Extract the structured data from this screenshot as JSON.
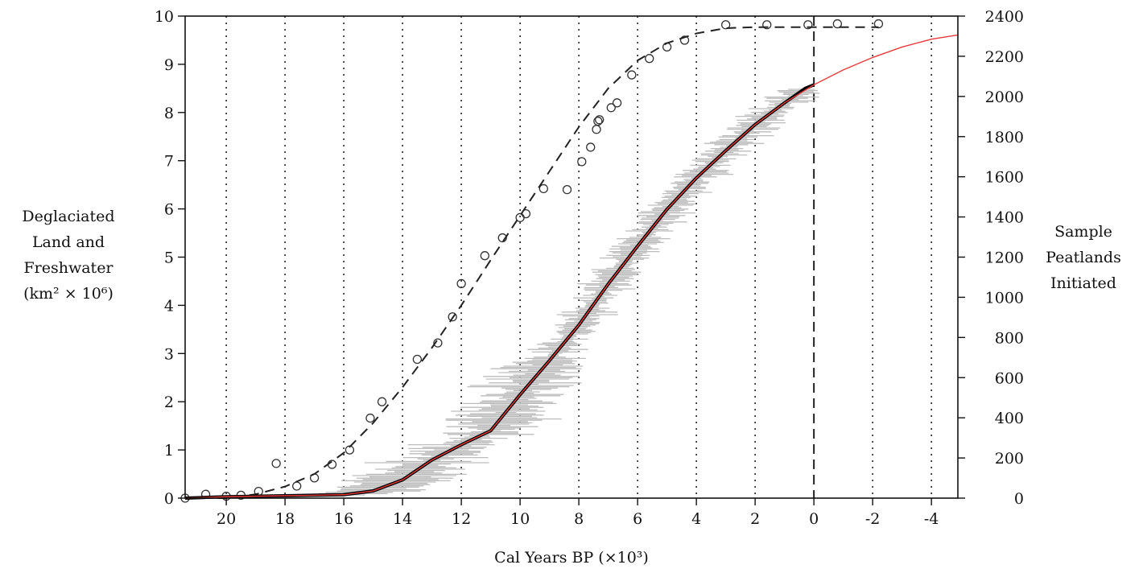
{
  "chart_data": {
    "type": "line",
    "xlabel": "Cal Years BP (×10³)",
    "ylabel_left_lines": [
      "Deglaciated",
      "Land and",
      "Freshwater",
      "(km² × 10⁶)"
    ],
    "ylabel_right_lines": [
      "Sample",
      "Peatlands",
      "Initiated"
    ],
    "x_axis_reversed": true,
    "xlim": [
      21.4,
      -4.9
    ],
    "ylim_left": [
      0,
      10
    ],
    "ylim_right": [
      0,
      2400
    ],
    "x_ticks": [
      20,
      18,
      16,
      14,
      12,
      10,
      8,
      6,
      4,
      2,
      0,
      -2,
      -4
    ],
    "x_tick_labels": [
      "20",
      "18",
      "16",
      "14",
      "12",
      "10",
      "8",
      "6",
      "4",
      "2",
      "0",
      "-2",
      "-4"
    ],
    "y_left_ticks": [
      0,
      1,
      2,
      3,
      4,
      5,
      6,
      7,
      8,
      9,
      10
    ],
    "y_right_ticks": [
      0,
      200,
      400,
      600,
      800,
      1000,
      1200,
      1400,
      1600,
      1800,
      2000,
      2200,
      2400
    ],
    "vertical_grid": "dotted lines at each x tick; dashed line at 0",
    "series": [
      {
        "style": "circles",
        "axis": "left",
        "x": [
          21.4,
          20.7,
          20.0,
          19.5,
          18.9,
          18.3,
          17.6,
          17.0,
          16.4,
          15.8,
          15.1,
          14.7,
          13.5,
          12.8,
          12.3,
          12.0,
          11.2,
          10.6,
          10.0,
          9.8,
          9.2,
          8.4,
          7.9,
          7.6,
          7.4,
          7.35,
          7.3,
          6.9,
          6.7,
          6.2,
          5.6,
          5.0,
          4.4,
          3.0,
          1.6,
          0.2,
          -0.8,
          -2.2
        ],
        "y": [
          0.0,
          0.08,
          0.04,
          0.06,
          0.14,
          0.72,
          0.25,
          0.42,
          0.7,
          1.0,
          1.66,
          2.0,
          2.88,
          3.22,
          3.76,
          4.45,
          5.03,
          5.4,
          5.82,
          5.9,
          6.42,
          6.4,
          6.98,
          7.28,
          7.65,
          7.82,
          7.85,
          8.1,
          8.2,
          8.78,
          9.12,
          9.36,
          9.5,
          9.82,
          9.82,
          9.82,
          9.84,
          9.84
        ]
      },
      {
        "style": "dashed",
        "axis": "left",
        "x": [
          21.4,
          20.0,
          19.0,
          18.0,
          17.0,
          16.0,
          15.0,
          14.0,
          13.0,
          12.0,
          11.0,
          10.0,
          9.0,
          8.0,
          7.0,
          6.0,
          5.0,
          4.0,
          3.0,
          2.0,
          1.0,
          0.0,
          -1.0,
          -2.2
        ],
        "y": [
          0.0,
          0.0,
          0.08,
          0.24,
          0.5,
          0.94,
          1.56,
          2.3,
          3.12,
          4.0,
          4.94,
          5.86,
          6.78,
          7.7,
          8.5,
          9.08,
          9.44,
          9.64,
          9.75,
          9.77,
          9.77,
          9.77,
          9.77,
          9.77
        ]
      },
      {
        "style": "solid-black",
        "axis": "right",
        "x": [
          21.4,
          20.0,
          18.0,
          16.0,
          15.0,
          14.0,
          13.0,
          12.0,
          11.0,
          10.0,
          9.0,
          8.0,
          7.0,
          6.0,
          5.0,
          4.0,
          3.0,
          2.0,
          1.0,
          0.3,
          0.0
        ],
        "y": [
          0,
          7,
          12,
          17,
          36,
          91,
          190,
          266,
          336,
          515,
          685,
          862,
          1066,
          1255,
          1438,
          1594,
          1730,
          1860,
          1968,
          2040,
          2058
        ]
      },
      {
        "style": "solid-red",
        "axis": "right",
        "x": [
          21.4,
          20.0,
          18.0,
          16.0,
          15.0,
          14.0,
          13.0,
          12.0,
          11.0,
          10.0,
          9.0,
          8.0,
          7.0,
          6.0,
          5.0,
          4.0,
          3.0,
          2.0,
          1.0,
          0.0,
          -1.0,
          -2.0,
          -3.0,
          -4.0,
          -4.9
        ],
        "y": [
          0,
          7,
          12,
          17,
          36,
          91,
          190,
          266,
          336,
          515,
          685,
          862,
          1066,
          1255,
          1438,
          1594,
          1730,
          1860,
          1968,
          2058,
          2132,
          2194,
          2246,
          2285,
          2306
        ]
      }
    ],
    "colors": {
      "circles": "#333333",
      "dashed": "#222222",
      "solid_black": "#000000",
      "solid_red": "#e83a3a",
      "error_bars": "#bdbdbd",
      "grid": "#222222"
    }
  }
}
